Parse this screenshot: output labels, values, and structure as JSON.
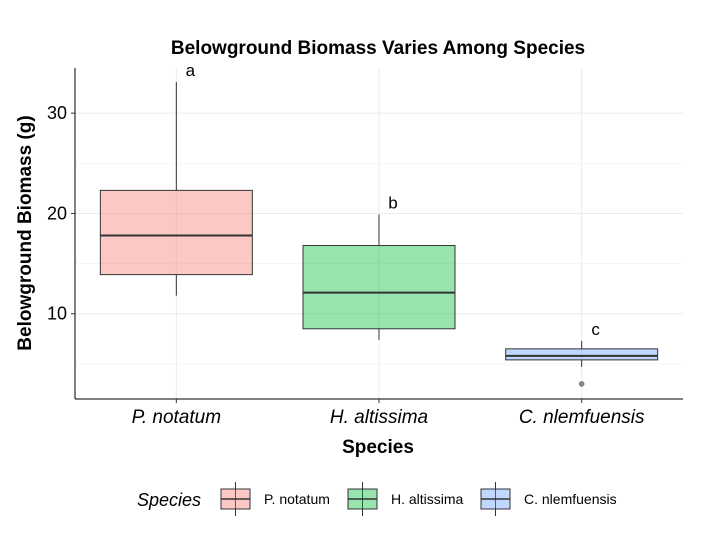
{
  "chart_data": {
    "type": "box",
    "title": "Belowground Biomass Varies Among Species",
    "xlabel": "Species",
    "ylabel": "Belowground Biomass (g)",
    "ylim": [
      1.5,
      34.5
    ],
    "yticks": [
      10,
      20,
      30
    ],
    "grid": true,
    "legend_title": "Species",
    "legend_position": "bottom",
    "categories": [
      "P. notatum",
      "H. altissima",
      "C. nlemfuensis"
    ],
    "series": [
      {
        "name": "P. notatum",
        "color": "#F8766D",
        "whisker_low": 11.8,
        "q1": 13.9,
        "median": 17.8,
        "q3": 22.3,
        "whisker_high": 33.1,
        "outliers": [],
        "letter": "a"
      },
      {
        "name": "H. altissima",
        "color": "#00BA38",
        "whisker_low": 7.4,
        "q1": 8.5,
        "median": 12.1,
        "q3": 16.8,
        "whisker_high": 19.9,
        "outliers": [],
        "letter": "b"
      },
      {
        "name": "C. nlemfuensis",
        "color": "#619CFF",
        "whisker_low": 4.7,
        "q1": 5.4,
        "median": 5.8,
        "q3": 6.5,
        "whisker_high": 7.3,
        "outliers": [
          3.0
        ],
        "letter": "c"
      }
    ]
  }
}
